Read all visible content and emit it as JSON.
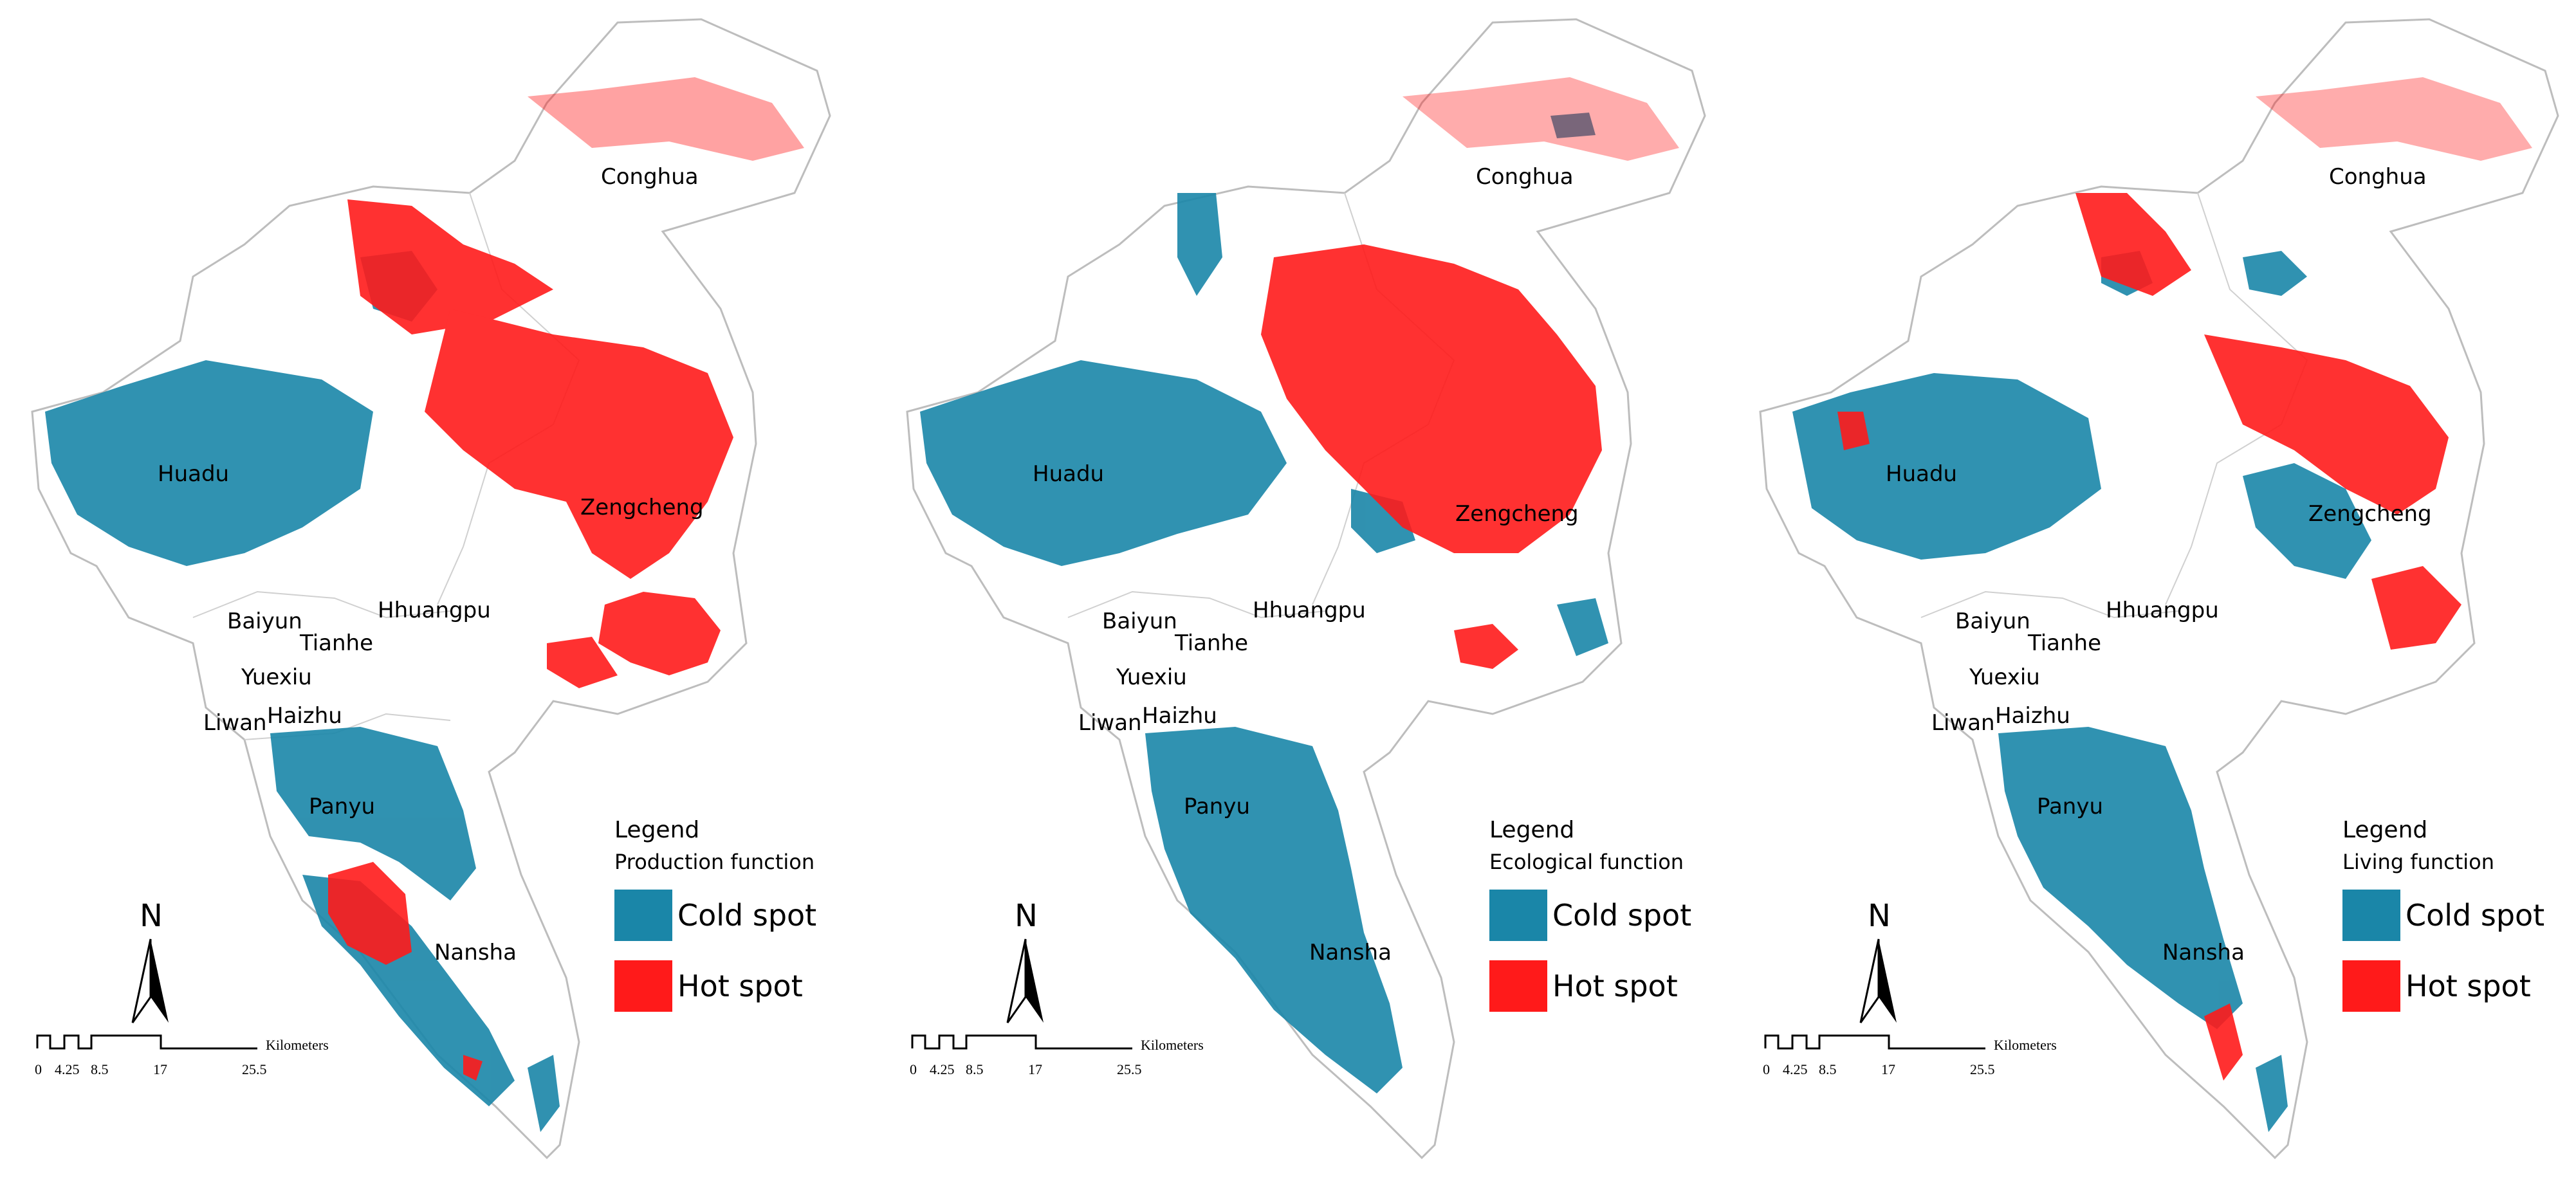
{
  "panels": [
    {
      "id": "production",
      "legend_title": "Legend",
      "legend_subtitle": "Production function",
      "districts": {
        "conghua": "Conghua",
        "huadu": "Huadu",
        "zengcheng": "Zengcheng",
        "baiyun": "Baiyun",
        "hhuangpu": "Hhuangpu",
        "tianhe": "Tianhe",
        "yuexiu": "Yuexiu",
        "liwan": "Liwan",
        "haizhu": "Haizhu",
        "panyu": "Panyu",
        "nansha": "Nansha"
      }
    },
    {
      "id": "ecological",
      "legend_title": "Legend",
      "legend_subtitle": "Ecological function",
      "districts": {
        "conghua": "Conghua",
        "huadu": "Huadu",
        "zengcheng": "Zengcheng",
        "baiyun": "Baiyun",
        "hhuangpu": "Hhuangpu",
        "tianhe": "Tianhe",
        "yuexiu": "Yuexiu",
        "liwan": "Liwan",
        "haizhu": "Haizhu",
        "panyu": "Panyu",
        "nansha": "Nansha"
      }
    },
    {
      "id": "living",
      "legend_title": "Legend",
      "legend_subtitle": "Living function",
      "districts": {
        "conghua": "Conghua",
        "huadu": "Huadu",
        "zengcheng": "Zengcheng",
        "baiyun": "Baiyun",
        "hhuangpu": "Hhuangpu",
        "tianhe": "Tianhe",
        "yuexiu": "Yuexiu",
        "liwan": "Liwan",
        "haizhu": "Haizhu",
        "panyu": "Panyu",
        "nansha": "Nansha"
      }
    }
  ],
  "legend_items": {
    "cold": "Cold spot",
    "hot": "Hot spot"
  },
  "colors": {
    "cold": "#1a86a8",
    "hot": "#ff1a1a",
    "boundary": "#bdbdbd"
  },
  "north_arrow": "N",
  "scale": {
    "ticks": [
      "0",
      "4.25",
      "8.5",
      "17",
      "25.5"
    ],
    "unit": "Kilometers"
  }
}
